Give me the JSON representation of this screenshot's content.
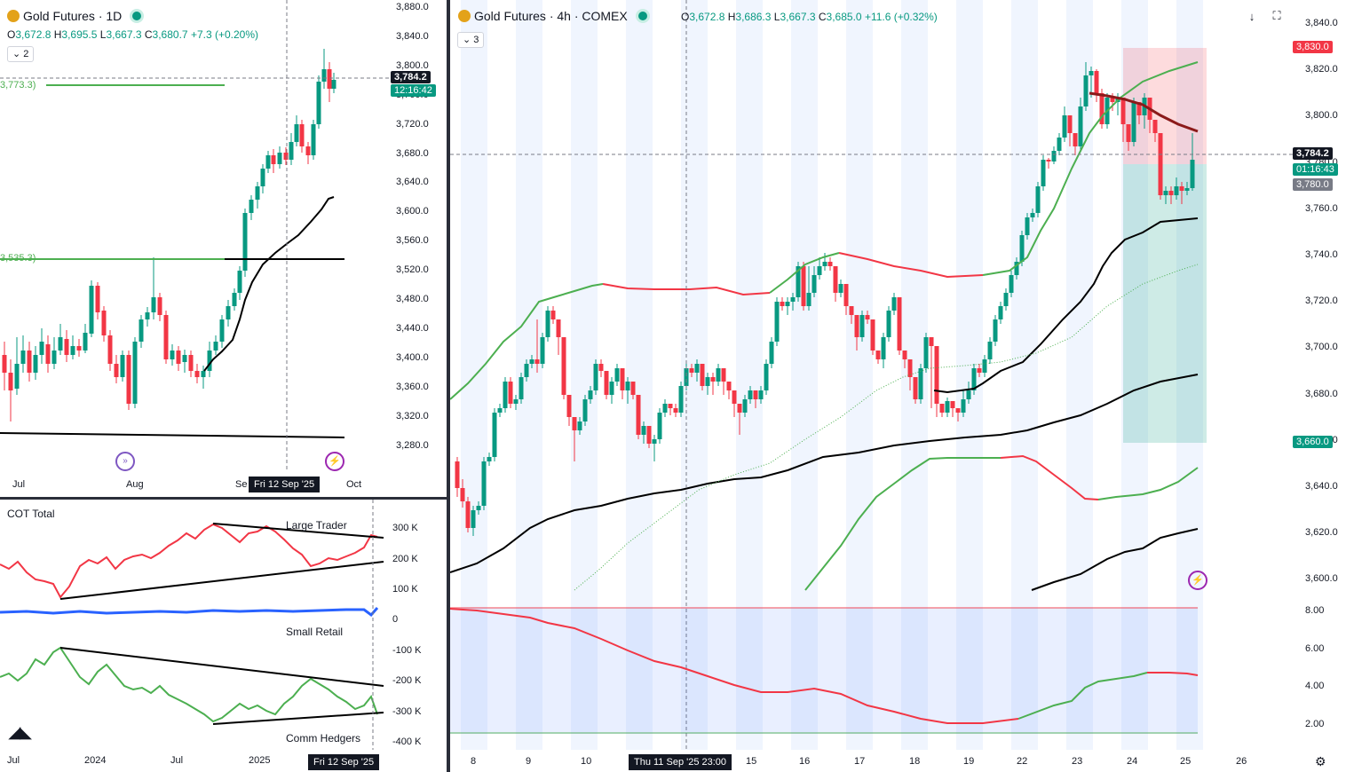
{
  "colors": {
    "up": "#089981",
    "down": "#f23645",
    "green_line": "#4caf50",
    "red_line": "#f23645",
    "black_line": "#000000"
  },
  "icons": [
    "gold-icon",
    "market-open-dot",
    "chevron-down-icon",
    "arrow-down-icon",
    "fullscreen-icon",
    "lightning-icon",
    "event-icon",
    "settings-icon",
    "tradingview-logo"
  ],
  "left_chart": {
    "title": "Gold Futures · 1D",
    "ohlc": {
      "o_label": "O",
      "o": "3,672.8",
      "h_label": "H",
      "h": "3,695.5",
      "l_label": "L",
      "l": "3,667.3",
      "c_label": "C",
      "c": "3,680.7",
      "change": "+7.3 (+0.20%)"
    },
    "indicators_count": "2",
    "price_labels": [
      "3,880.0",
      "3,840.0",
      "3,800.0",
      "3,760.0",
      "3,720.0",
      "3,680.0",
      "3,640.0",
      "3,600.0",
      "3,560.0",
      "3,520.0",
      "3,480.0",
      "3,440.0",
      "3,400.0",
      "3,360.0",
      "3,320.0",
      "3,280.0"
    ],
    "last_price": "3,784.2",
    "countdown": "12:16:42",
    "level_1_label": "3,773.3)",
    "level_2_label": "3,535.3)",
    "time_labels": [
      "Jul",
      "Aug",
      "Se",
      "Oct"
    ],
    "crosshair_date": "Fri 12 Sep '25"
  },
  "cot_chart": {
    "title": "COT Total",
    "large_trader_label": "Large Trader",
    "small_retail_label": "Small Retail",
    "comm_hedgers_label": "Comm Hedgers",
    "value_labels": [
      "300 K",
      "200 K",
      "100 K",
      "0",
      "-100 K",
      "-200 K",
      "-300 K",
      "-400 K"
    ],
    "time_labels": [
      "Jul",
      "2024",
      "Jul",
      "2025"
    ],
    "crosshair_date": "Fri 12 Sep '25"
  },
  "right_chart": {
    "title": "Gold Futures · 4h · COMEX",
    "ohlc": {
      "o_label": "O",
      "o": "3,672.8",
      "h_label": "H",
      "h": "3,686.3",
      "l_label": "L",
      "l": "3,667.3",
      "c_label": "C",
      "c": "3,685.0",
      "change": "+11.6 (+0.32%)"
    },
    "indicators_count": "3",
    "price_labels": [
      "3,840.0",
      "3,820.0",
      "3,800.0",
      "3,780.0",
      "3,760.0",
      "3,740.0",
      "3,720.0",
      "3,700.0",
      "3,680.0",
      "3,660.0",
      "3,640.0",
      "3,620.0",
      "3,600.0"
    ],
    "stop_price": "3,830.0",
    "last_price": "3,784.2",
    "countdown": "01:16:43",
    "entry_price": "3,780.0",
    "target_price": "3,660.0",
    "sub_labels": [
      "8.00",
      "6.00",
      "4.00",
      "2.00"
    ],
    "time_labels": [
      "8",
      "9",
      "10",
      "15",
      "16",
      "17",
      "18",
      "19",
      "22",
      "23",
      "24",
      "25",
      "26"
    ],
    "crosshair_time": "Thu 11 Sep '25   23:00"
  }
}
